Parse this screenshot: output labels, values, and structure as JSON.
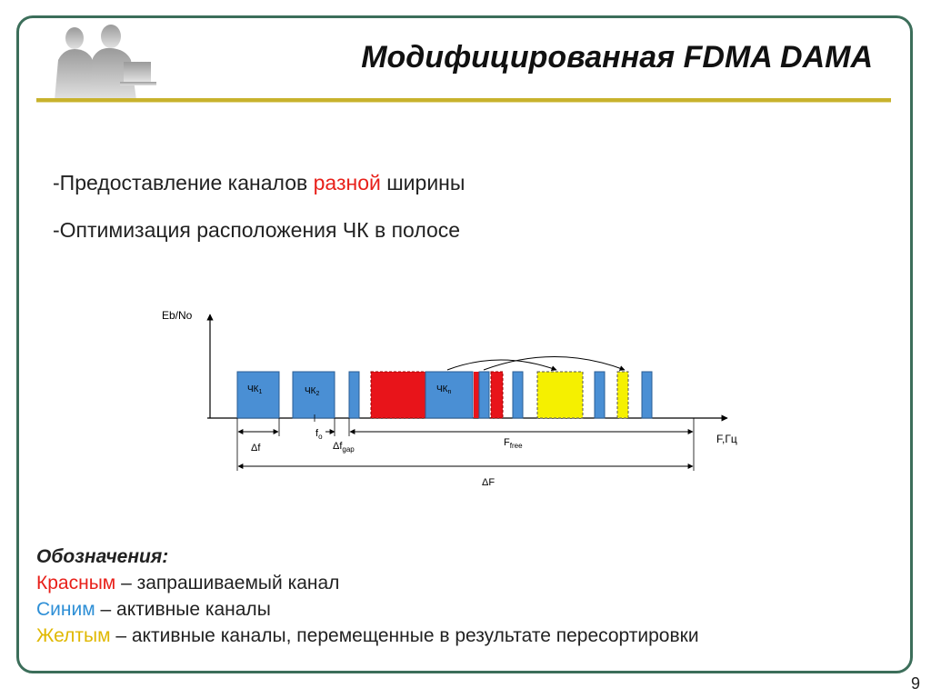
{
  "title": "Модифицированная FDMA DAMA",
  "bullets": {
    "b1_prefix": "-Предоставление каналов ",
    "b1_highlight": "разной",
    "b1_suffix": " ширины",
    "b2": "-Оптимизация расположения ЧК в полосе"
  },
  "diagram": {
    "y_axis_label": "Eb/No",
    "x_axis_label": "F,Гц",
    "ch1_prefix": "ЧК",
    "ch1_sub": "1",
    "ch2_prefix": "ЧК",
    "ch2_sub": "2",
    "chn_prefix": "ЧК",
    "chn_sub": "n",
    "delta_f": "Δf",
    "f0_prefix": "f",
    "f0_sub": "o",
    "dfgap_prefix": "Δf",
    "dfgap_sub": "gap",
    "ffree_prefix": "F",
    "ffree_sub": "free",
    "delta_F": "ΔF",
    "colors": {
      "blue": "#4a8fd4",
      "red": "#e8141a",
      "yellow": "#f5f000"
    }
  },
  "legend": {
    "title": "Обозначения:",
    "red_word": "Красным",
    "red_text": " – запрашиваемый канал",
    "blue_word": "Синим",
    "blue_text": " – активные каналы",
    "yellow_word": "Желтым",
    "yellow_text": " – активные каналы, перемещенные в результате пересортировки"
  },
  "page_number": "9"
}
